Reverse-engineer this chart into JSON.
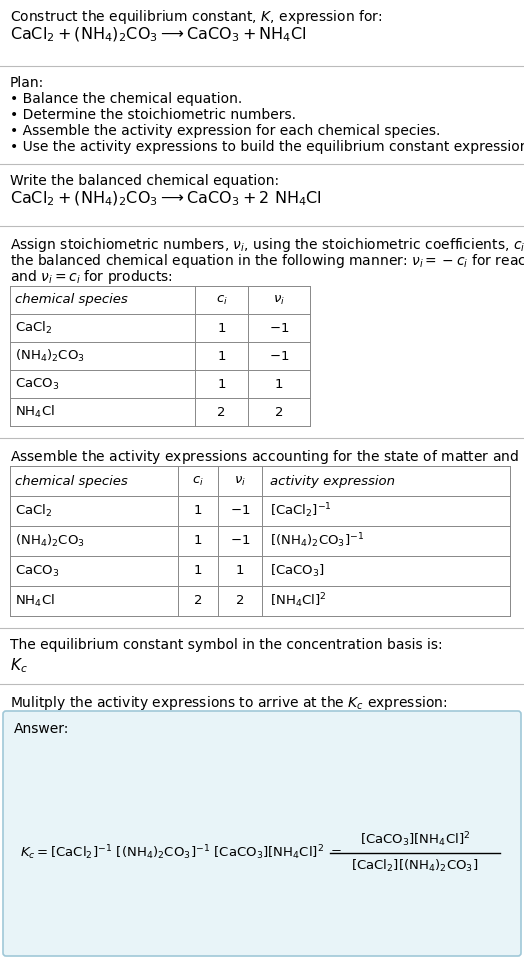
{
  "bg_color": "#ffffff",
  "section_bg": "#e8f4f8",
  "border_color": "#a0c8d8",
  "text_color": "#000000",
  "table_line_color": "#888888",
  "sep_line_color": "#bbbbbb",
  "title_line1": "Construct the equilibrium constant, $K$, expression for:",
  "title_chem": "$\\mathrm{CaCl_2 + (NH_4)_2CO_3 \\longrightarrow CaCO_3 + NH_4Cl}$",
  "plan_header": "Plan:",
  "plan_items": [
    "$\\cdot$ Balance the chemical equation.",
    "$\\cdot$ Determine the stoichiometric numbers.",
    "$\\cdot$ Assemble the activity expression for each chemical species.",
    "$\\cdot$ Use the activity expressions to build the equilibrium constant expression."
  ],
  "balanced_header": "Write the balanced chemical equation:",
  "balanced_eq": "$\\mathrm{CaCl_2 + (NH_4)_2CO_3 \\longrightarrow CaCO_3 + 2\\ NH_4Cl}$",
  "stoich_intro": "Assign stoichiometric numbers, $\\nu_i$, using the stoichiometric coefficients, $c_i$, from\nthe balanced chemical equation in the following manner: $\\nu_i = -c_i$ for reactants\nand $\\nu_i = c_i$ for products:",
  "table1_rows": [
    [
      "$\\mathrm{CaCl_2}$",
      "1",
      "$-1$"
    ],
    [
      "$\\mathrm{(NH_4)_2CO_3}$",
      "1",
      "$-1$"
    ],
    [
      "$\\mathrm{CaCO_3}$",
      "1",
      "1"
    ],
    [
      "$\\mathrm{NH_4Cl}$",
      "2",
      "2"
    ]
  ],
  "activity_intro": "Assemble the activity expressions accounting for the state of matter and $\\nu_i$:",
  "table2_rows": [
    [
      "$\\mathrm{CaCl_2}$",
      "1",
      "$-1$",
      "$[\\mathrm{CaCl_2}]^{-1}$"
    ],
    [
      "$\\mathrm{(NH_4)_2CO_3}$",
      "1",
      "$-1$",
      "$[(\\mathrm{NH_4})_2\\mathrm{CO_3}]^{-1}$"
    ],
    [
      "$\\mathrm{CaCO_3}$",
      "1",
      "1",
      "$[\\mathrm{CaCO_3}]$"
    ],
    [
      "$\\mathrm{NH_4Cl}$",
      "2",
      "2",
      "$[\\mathrm{NH_4Cl}]^{2}$"
    ]
  ],
  "kc_intro": "The equilibrium constant symbol in the concentration basis is:",
  "kc_symbol": "$K_c$",
  "multiply_intro": "Mulitply the activity expressions to arrive at the $K_c$ expression:",
  "answer_label": "Answer:",
  "fs_base": 10.0,
  "fs_table": 9.5,
  "lm": 10,
  "fig_w": 5.24,
  "fig_h": 9.59,
  "dpi": 100
}
